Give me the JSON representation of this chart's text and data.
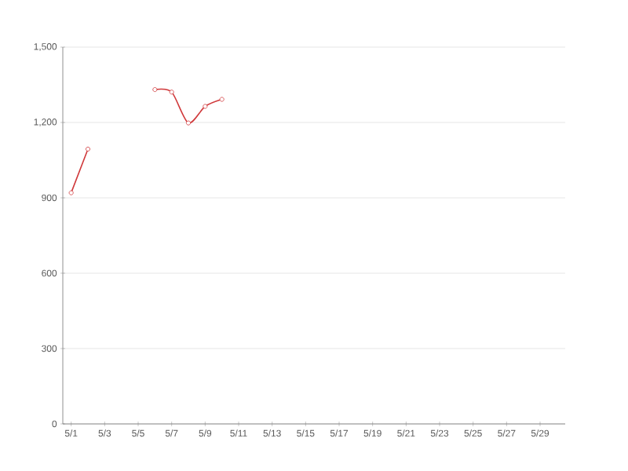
{
  "chart_data": {
    "type": "line",
    "categories": [
      "5/1",
      null,
      "5/3",
      null,
      "5/5",
      null,
      "5/7",
      null,
      "5/9",
      null,
      "5/11",
      null,
      "5/13",
      null,
      "5/15",
      null,
      "5/17",
      null,
      "5/19",
      null,
      "5/21",
      null,
      "5/23",
      null,
      "5/25",
      null,
      "5/27",
      null,
      "5/29",
      null
    ],
    "series": [
      {
        "color": "#d0393b",
        "values": [
          920,
          1094,
          null,
          null,
          null,
          1331,
          1321,
          1198,
          1264,
          1292,
          null,
          null,
          null,
          null,
          null,
          null,
          null,
          null,
          null,
          null,
          null,
          null,
          null,
          null,
          null,
          null,
          null,
          null,
          null,
          null
        ]
      }
    ],
    "ylim": [
      0,
      1500
    ],
    "yticks": [
      0,
      300,
      600,
      900,
      {
        "value": 1200,
        "label": "1,200"
      },
      {
        "value": 1500,
        "label": "1,500"
      }
    ],
    "grid": "y",
    "marker": "circle",
    "line_style": "solid"
  }
}
